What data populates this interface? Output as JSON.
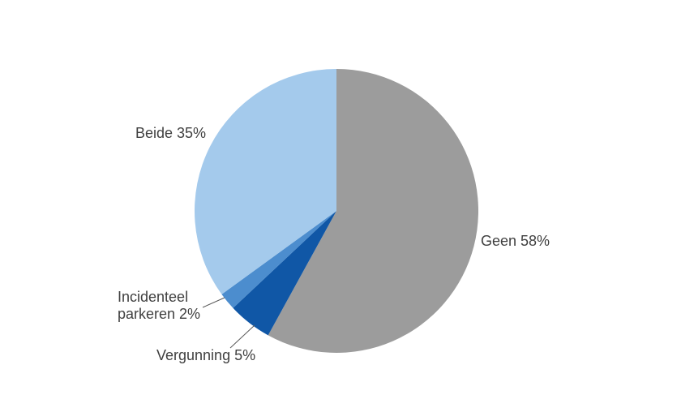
{
  "chart_data": {
    "type": "pie",
    "title": "",
    "start_angle_deg": 0,
    "direction": "clockwise",
    "unit": "%",
    "slices": [
      {
        "label": "Geen",
        "value": 58,
        "display": "Geen 58%",
        "color": "#9c9c9c"
      },
      {
        "label": "Vergunning",
        "value": 5,
        "display": "Vergunning 5%",
        "color": "#1057a6"
      },
      {
        "label": "Incidenteel parkeren",
        "value": 2,
        "display": "Incidenteel\nparkeren 2%",
        "color": "#4c8dce"
      },
      {
        "label": "Beide",
        "value": 35,
        "display": "Beide 35%",
        "color": "#a4caec"
      }
    ],
    "label_text_color": "#404040",
    "leader_line_color": "#595959",
    "background_color": "#ffffff",
    "legend": "none",
    "data_labels_position": "outside"
  }
}
